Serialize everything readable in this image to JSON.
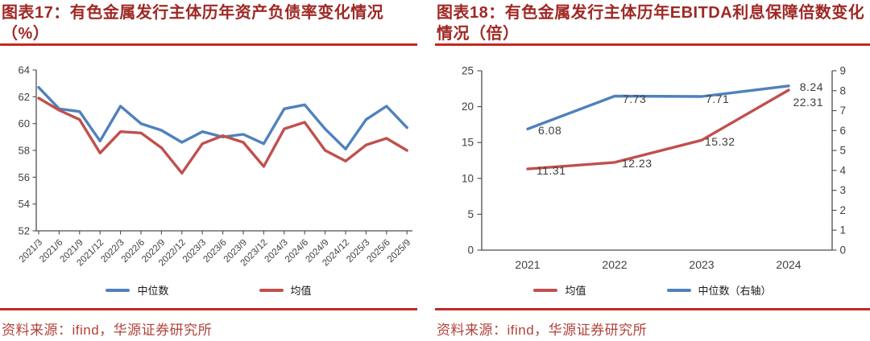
{
  "colors": {
    "title": "#9f2824",
    "rule": "#c12a26",
    "source_text": "#b2423a",
    "median_line": "#4F81BD",
    "mean_line": "#C0504D",
    "axis": "#4d4d4d",
    "tick_label": "#404040",
    "data_label": "#3d3d3d"
  },
  "sources": {
    "left": "资料来源：ifind，华源证券研究所",
    "right": "资料来源：ifind，华源证券研究所"
  },
  "chart_data": [
    {
      "type": "line",
      "title": "图表17：有色金属发行主体历年资产负债率变化情况（%）",
      "xlabel": "",
      "ylabel": "",
      "categories": [
        "2021/3",
        "2021/6",
        "2021/9",
        "2021/12",
        "2022/3",
        "2022/6",
        "2022/9",
        "2022/12",
        "2023/3",
        "2023/6",
        "2023/9",
        "2023/12",
        "2024/3",
        "2024/6",
        "2024/9",
        "2024/12",
        "2025/3",
        "2025/6",
        "2025/9"
      ],
      "series": [
        {
          "name": "中位数",
          "color": "#4F81BD",
          "values": [
            62.7,
            61.1,
            60.9,
            58.7,
            61.3,
            60.0,
            59.5,
            58.6,
            59.4,
            59.0,
            59.2,
            58.5,
            61.1,
            61.4,
            59.6,
            58.1,
            60.3,
            61.3,
            59.7
          ]
        },
        {
          "name": "均值",
          "color": "#C0504D",
          "values": [
            61.9,
            61.0,
            60.3,
            57.8,
            59.4,
            59.3,
            58.2,
            56.3,
            58.5,
            59.1,
            58.6,
            56.8,
            59.6,
            60.1,
            58.0,
            57.2,
            58.4,
            58.9,
            58.0
          ]
        }
      ],
      "ylim": [
        52,
        64
      ],
      "ytick_step": 2,
      "x_tick_label_rotation": 45,
      "grid": false,
      "legend_position": "bottom"
    },
    {
      "type": "line",
      "title": "图表18：有色金属发行主体历年EBITDA利息保障倍数变化情况（倍）",
      "xlabel": "",
      "ylabel": "",
      "categories": [
        "2021",
        "2022",
        "2023",
        "2024"
      ],
      "series": [
        {
          "name": "均值",
          "axis": "left",
          "color": "#C0504D",
          "values": [
            11.31,
            12.23,
            15.32,
            22.31
          ]
        },
        {
          "name": "中位数（右轴）",
          "axis": "right",
          "color": "#4F81BD",
          "values": [
            6.08,
            7.73,
            7.71,
            8.24
          ]
        }
      ],
      "ylim_left": [
        0,
        25
      ],
      "ytick_step_left": 5,
      "ylim_right": [
        0,
        9
      ],
      "ytick_step_right": 1,
      "data_labels": true,
      "grid": false,
      "legend_position": "bottom"
    }
  ]
}
